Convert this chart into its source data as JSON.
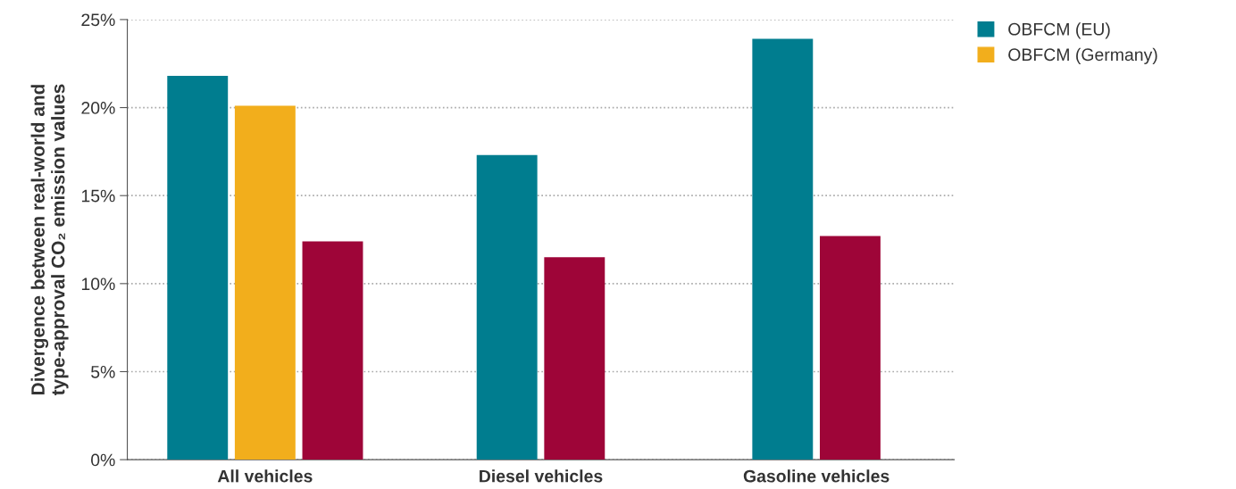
{
  "chart_data": {
    "type": "bar",
    "ylabel": "Divergence between real-world and\ntype-approval CO₂ emission values",
    "categories": [
      "All vehicles",
      "Diesel vehicles",
      "Gasoline vehicles"
    ],
    "series": [
      {
        "name": "OBFCM (EU)",
        "color": "#007d8f",
        "values": [
          21.8,
          17.3,
          23.9
        ]
      },
      {
        "name": "OBFCM (Germany)",
        "color": "#f2ae1c",
        "values": [
          20.1,
          null,
          null
        ]
      },
      {
        "color": "#9e0538",
        "values": [
          12.4,
          11.5,
          12.7
        ]
      }
    ],
    "ylim": [
      0,
      25
    ],
    "yticks": [
      {
        "value": 0,
        "label": "0%"
      },
      {
        "value": 5,
        "label": "5%"
      },
      {
        "value": 10,
        "label": "10%"
      },
      {
        "value": 15,
        "label": "15%"
      },
      {
        "value": 20,
        "label": "20%"
      },
      {
        "value": 25,
        "label": "25%"
      }
    ],
    "grid": "y",
    "legend": "top right"
  }
}
